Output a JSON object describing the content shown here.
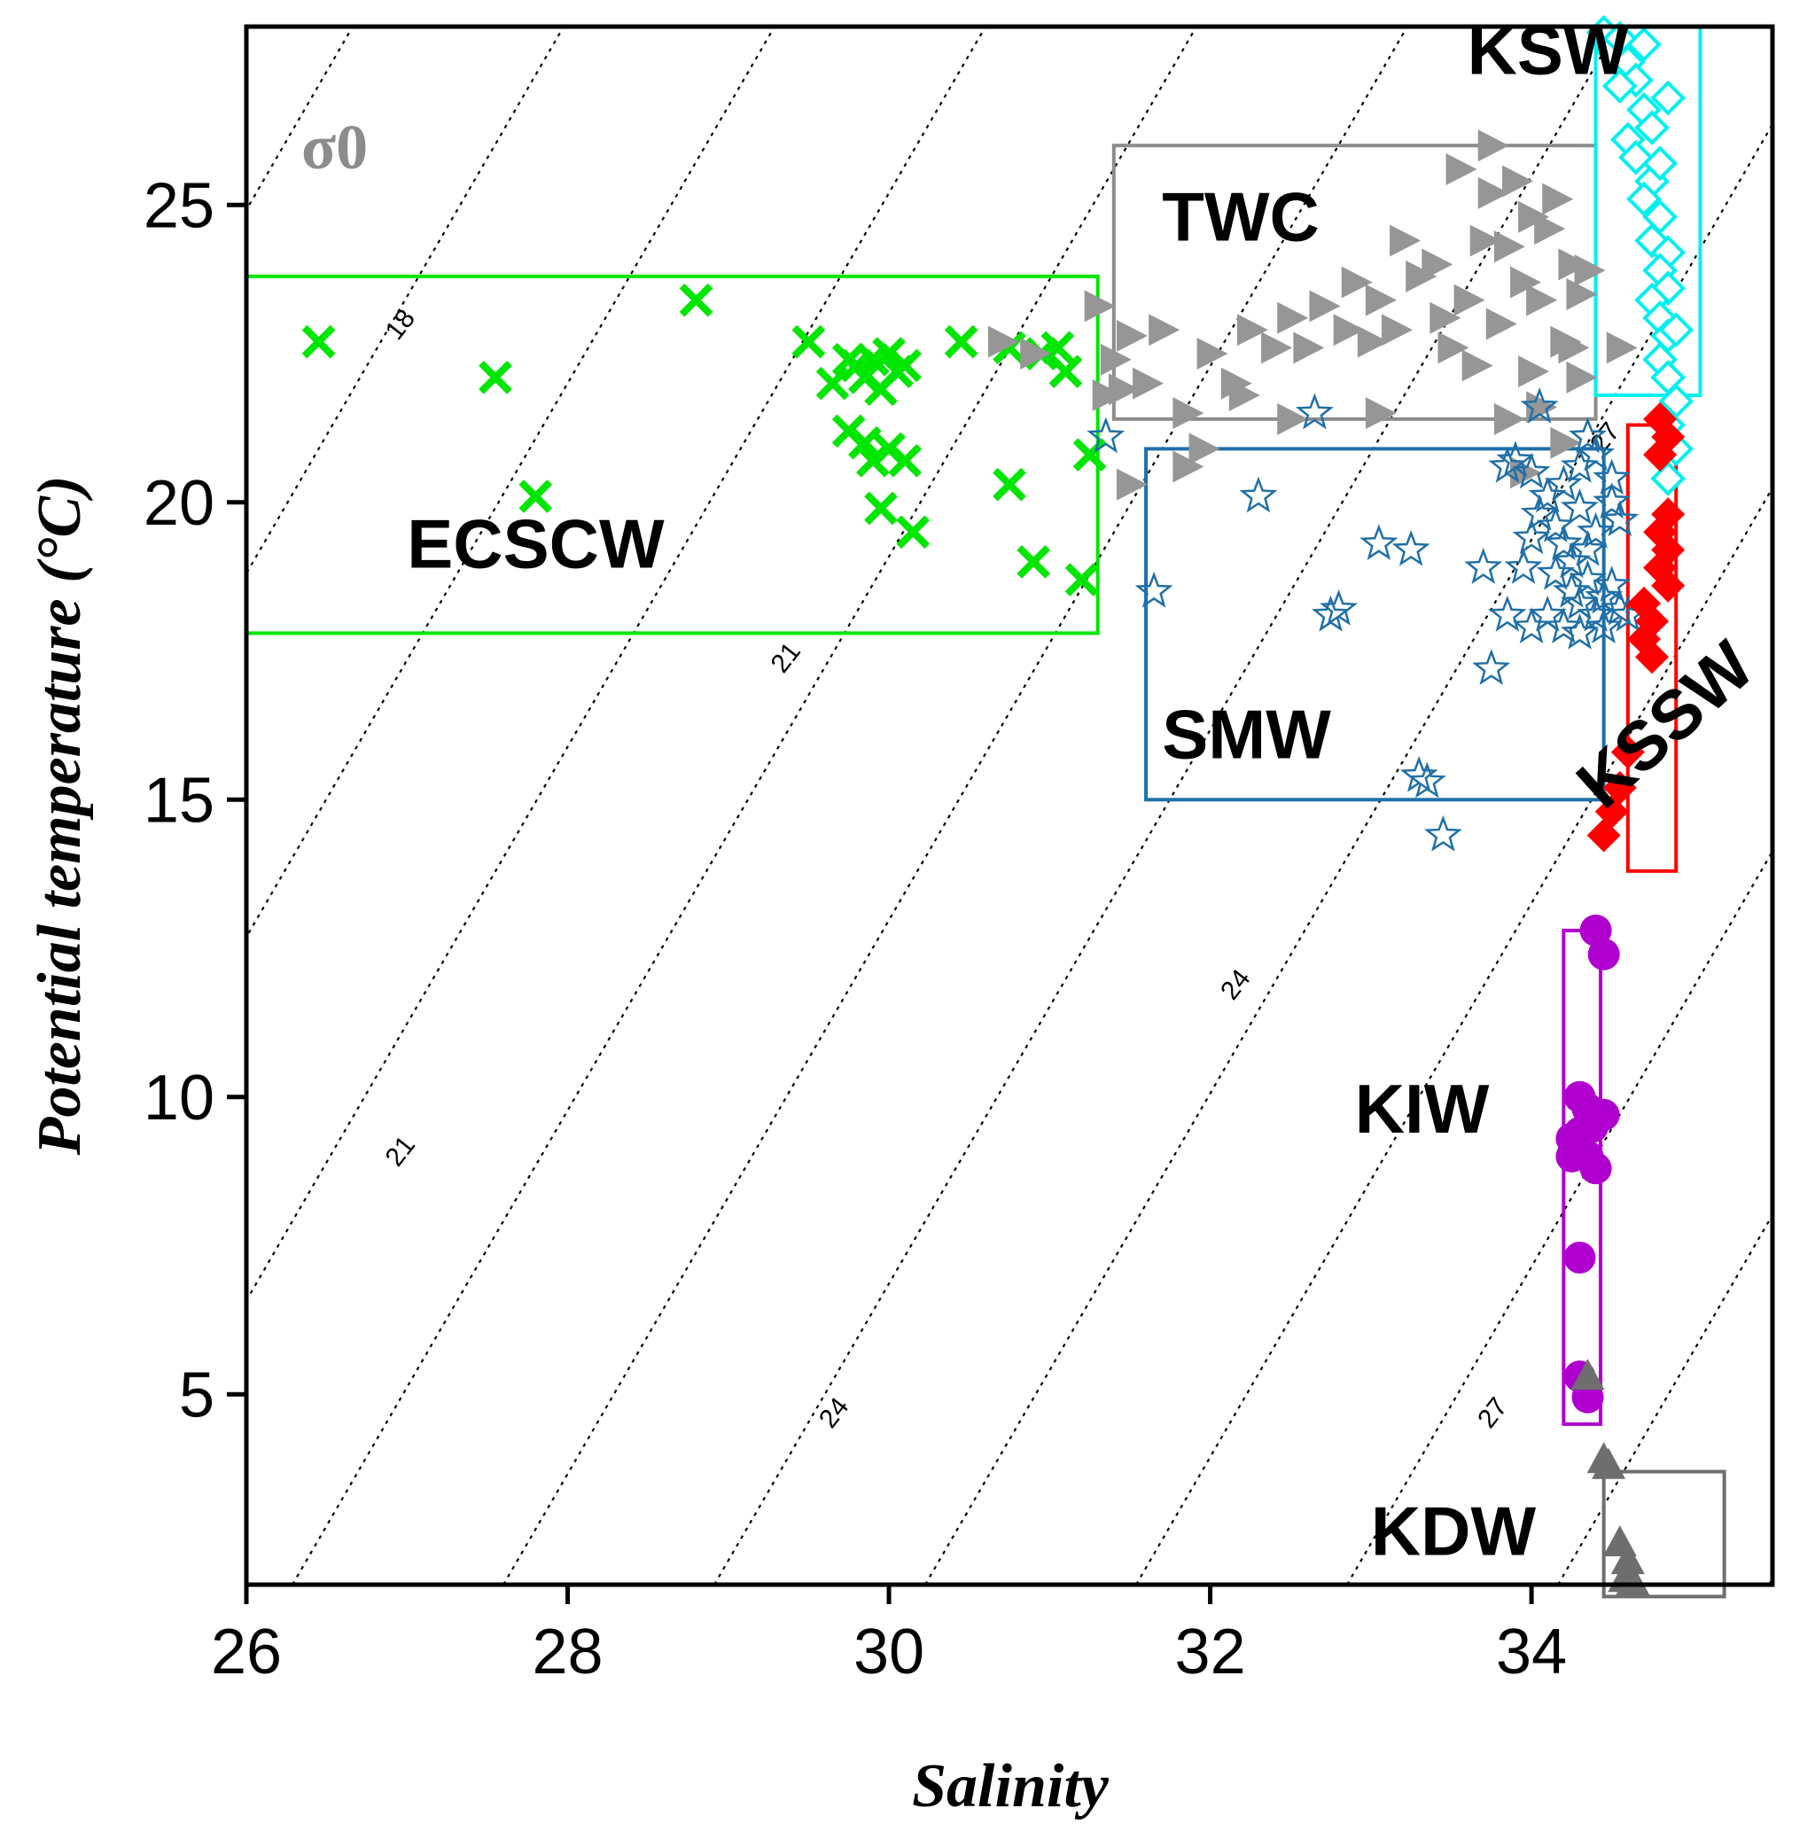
{
  "chart_data": {
    "type": "scatter",
    "title": "",
    "xlabel": "Salinity",
    "ylabel": "Potential temperature (°C)",
    "xlim": [
      26,
      35.5
    ],
    "ylim": [
      1.8,
      28
    ],
    "xticks": [
      26,
      28,
      30,
      32,
      34
    ],
    "yticks": [
      5,
      10,
      15,
      20,
      25
    ],
    "sigma_label": "σ0",
    "contour_levels": [
      18,
      21,
      24,
      27
    ],
    "contour_labels": [
      {
        "text": "18",
        "s": 27.0,
        "t": 22.9
      },
      {
        "text": "21",
        "s": 29.4,
        "t": 17.3
      },
      {
        "text": "24",
        "s": 32.2,
        "t": 11.8
      },
      {
        "text": "21",
        "s": 27.0,
        "t": 9.0
      },
      {
        "text": "24",
        "s": 29.7,
        "t": 4.6
      },
      {
        "text": "27",
        "s": 33.8,
        "t": 4.6
      },
      {
        "text": "27",
        "s": 34.5,
        "t": 21.0
      }
    ],
    "regions": [
      {
        "name": "ECSCW",
        "color": "#00e600",
        "box": {
          "smin": 26.0,
          "smax": 31.3,
          "tmin": 17.8,
          "tmax": 23.8
        },
        "label_at": {
          "s": 27.0,
          "t": 18.9
        }
      },
      {
        "name": "TWC",
        "color": "#8c8c8c",
        "box": {
          "smin": 31.4,
          "smax": 34.4,
          "tmin": 21.4,
          "tmax": 26.0
        },
        "label_at": {
          "s": 31.7,
          "t": 24.4
        }
      },
      {
        "name": "SMW",
        "color": "#1f6fa8",
        "box": {
          "smin": 31.6,
          "smax": 34.45,
          "tmin": 15.0,
          "tmax": 20.9
        },
        "label_at": {
          "s": 31.7,
          "t": 15.7
        }
      },
      {
        "name": "KSW",
        "color": "#00f0f0",
        "box": {
          "smin": 34.4,
          "smax": 35.05,
          "tmin": 21.8,
          "tmax": 28.0
        },
        "label_at": {
          "s": 33.6,
          "t": 27.2
        }
      },
      {
        "name": "KSSW",
        "color": "#ff0000",
        "box": {
          "smin": 34.6,
          "smax": 34.9,
          "tmin": 13.8,
          "tmax": 21.3
        },
        "label_at": {
          "s": 34.45,
          "t": 14.8
        }
      },
      {
        "name": "KIW",
        "color": "#b000d0",
        "box": {
          "smin": 34.2,
          "smax": 34.43,
          "tmin": 4.5,
          "tmax": 12.8
        },
        "label_at": {
          "s": 32.9,
          "t": 9.4
        }
      },
      {
        "name": "KDW",
        "color": "#6e6e6e",
        "box": {
          "smin": 34.45,
          "smax": 35.2,
          "tmin": 1.6,
          "tmax": 3.7
        },
        "label_at": {
          "s": 33.0,
          "t": 2.3
        }
      }
    ],
    "series": [
      {
        "name": "ECSCW",
        "marker": "x",
        "color": "#00e600",
        "points": [
          [
            26.45,
            22.7
          ],
          [
            27.55,
            22.1
          ],
          [
            27.8,
            20.1
          ],
          [
            28.8,
            23.4
          ],
          [
            29.5,
            22.7
          ],
          [
            29.65,
            22.0
          ],
          [
            29.75,
            22.4
          ],
          [
            29.8,
            22.3
          ],
          [
            29.9,
            22.4
          ],
          [
            30.0,
            22.5
          ],
          [
            29.85,
            22.1
          ],
          [
            29.95,
            21.9
          ],
          [
            30.05,
            22.2
          ],
          [
            30.1,
            22.3
          ],
          [
            29.75,
            21.2
          ],
          [
            29.85,
            21.0
          ],
          [
            29.9,
            20.7
          ],
          [
            30.0,
            20.9
          ],
          [
            30.1,
            20.7
          ],
          [
            29.95,
            19.9
          ],
          [
            30.15,
            19.5
          ],
          [
            30.45,
            22.7
          ],
          [
            30.75,
            22.6
          ],
          [
            30.95,
            22.5
          ],
          [
            31.05,
            22.6
          ],
          [
            31.1,
            22.2
          ],
          [
            30.75,
            20.3
          ],
          [
            30.9,
            19.0
          ],
          [
            31.2,
            18.7
          ],
          [
            31.25,
            20.8
          ]
        ]
      },
      {
        "name": "TWC",
        "marker": "triangle-right",
        "color": "#969696",
        "points": [
          [
            30.7,
            22.7
          ],
          [
            30.9,
            22.5
          ],
          [
            31.3,
            23.3
          ],
          [
            31.4,
            22.4
          ],
          [
            31.5,
            22.8
          ],
          [
            31.35,
            21.8
          ],
          [
            31.45,
            21.9
          ],
          [
            31.6,
            22.0
          ],
          [
            31.7,
            22.9
          ],
          [
            31.85,
            21.5
          ],
          [
            32.0,
            22.5
          ],
          [
            32.15,
            22.0
          ],
          [
            32.25,
            22.9
          ],
          [
            32.4,
            22.6
          ],
          [
            32.5,
            23.1
          ],
          [
            32.6,
            22.6
          ],
          [
            32.7,
            23.3
          ],
          [
            32.85,
            22.9
          ],
          [
            32.9,
            23.7
          ],
          [
            33.0,
            22.7
          ],
          [
            33.05,
            23.4
          ],
          [
            33.15,
            22.9
          ],
          [
            33.2,
            24.4
          ],
          [
            33.3,
            23.8
          ],
          [
            33.4,
            24.0
          ],
          [
            33.45,
            23.1
          ],
          [
            33.5,
            22.6
          ],
          [
            33.6,
            23.4
          ],
          [
            33.7,
            24.4
          ],
          [
            33.75,
            25.2
          ],
          [
            33.8,
            23.0
          ],
          [
            33.85,
            24.3
          ],
          [
            33.9,
            25.4
          ],
          [
            33.95,
            23.7
          ],
          [
            34.0,
            24.8
          ],
          [
            34.05,
            23.4
          ],
          [
            34.1,
            24.6
          ],
          [
            34.15,
            25.1
          ],
          [
            34.2,
            22.7
          ],
          [
            34.25,
            24.0
          ],
          [
            34.3,
            23.5
          ],
          [
            34.3,
            22.1
          ],
          [
            34.35,
            23.9
          ],
          [
            33.75,
            26.0
          ],
          [
            33.55,
            25.6
          ],
          [
            33.05,
            21.5
          ],
          [
            32.5,
            21.4
          ],
          [
            34.05,
            21.6
          ],
          [
            34.2,
            21.0
          ],
          [
            33.95,
            20.5
          ],
          [
            31.85,
            20.6
          ],
          [
            31.5,
            20.3
          ],
          [
            31.95,
            20.9
          ],
          [
            34.55,
            22.6
          ],
          [
            34.0,
            22.2
          ],
          [
            33.65,
            22.3
          ],
          [
            34.25,
            22.6
          ],
          [
            33.85,
            21.4
          ],
          [
            32.2,
            21.8
          ]
        ]
      },
      {
        "name": "SMW",
        "marker": "star",
        "color": "#1f6fa8",
        "points": [
          [
            31.35,
            21.1
          ],
          [
            31.65,
            18.5
          ],
          [
            32.3,
            20.1
          ],
          [
            32.65,
            21.5
          ],
          [
            32.75,
            18.1
          ],
          [
            32.8,
            18.2
          ],
          [
            33.05,
            19.3
          ],
          [
            33.25,
            19.2
          ],
          [
            33.3,
            15.4
          ],
          [
            33.35,
            15.3
          ],
          [
            33.45,
            14.4
          ],
          [
            33.7,
            18.9
          ],
          [
            33.75,
            17.2
          ],
          [
            33.85,
            20.6
          ],
          [
            33.9,
            20.7
          ],
          [
            34.0,
            20.5
          ],
          [
            33.85,
            18.1
          ],
          [
            33.95,
            18.9
          ],
          [
            34.0,
            19.4
          ],
          [
            34.05,
            19.8
          ],
          [
            34.1,
            20.1
          ],
          [
            34.15,
            19.6
          ],
          [
            34.15,
            18.8
          ],
          [
            34.2,
            19.3
          ],
          [
            34.2,
            20.3
          ],
          [
            34.25,
            18.5
          ],
          [
            34.25,
            19.0
          ],
          [
            34.3,
            19.9
          ],
          [
            34.3,
            18.3
          ],
          [
            34.35,
            18.7
          ],
          [
            34.35,
            19.2
          ],
          [
            34.4,
            18.1
          ],
          [
            34.4,
            19.5
          ],
          [
            34.45,
            18.4
          ],
          [
            34.45,
            17.9
          ],
          [
            34.5,
            18.6
          ],
          [
            34.5,
            20.0
          ],
          [
            34.55,
            18.2
          ],
          [
            34.55,
            19.7
          ],
          [
            34.1,
            18.1
          ],
          [
            34.0,
            17.9
          ],
          [
            34.2,
            17.9
          ],
          [
            34.3,
            17.8
          ],
          [
            34.05,
            21.6
          ],
          [
            34.3,
            20.6
          ],
          [
            34.4,
            20.8
          ],
          [
            34.35,
            21.1
          ],
          [
            34.5,
            20.4
          ],
          [
            34.6,
            18.1
          ]
        ]
      },
      {
        "name": "KSW",
        "marker": "diamond-open",
        "color": "#00f0f0",
        "points": [
          [
            34.45,
            27.9
          ],
          [
            34.5,
            27.6
          ],
          [
            34.55,
            27.8
          ],
          [
            34.6,
            27.4
          ],
          [
            34.65,
            27.1
          ],
          [
            34.55,
            27.0
          ],
          [
            34.7,
            26.6
          ],
          [
            34.75,
            26.3
          ],
          [
            34.6,
            26.1
          ],
          [
            34.65,
            25.8
          ],
          [
            34.75,
            25.4
          ],
          [
            34.8,
            25.7
          ],
          [
            34.7,
            25.1
          ],
          [
            34.8,
            24.8
          ],
          [
            34.75,
            24.4
          ],
          [
            34.85,
            24.2
          ],
          [
            34.8,
            23.9
          ],
          [
            34.85,
            23.6
          ],
          [
            34.75,
            23.4
          ],
          [
            34.8,
            23.1
          ],
          [
            34.85,
            22.8
          ],
          [
            34.8,
            22.4
          ],
          [
            34.9,
            22.9
          ],
          [
            34.85,
            22.1
          ],
          [
            34.9,
            21.7
          ],
          [
            34.85,
            21.3
          ],
          [
            34.9,
            20.9
          ],
          [
            34.85,
            20.4
          ],
          [
            34.7,
            27.7
          ],
          [
            34.85,
            26.8
          ]
        ]
      },
      {
        "name": "KSSW",
        "marker": "diamond",
        "color": "#ff0000",
        "points": [
          [
            34.8,
            21.4
          ],
          [
            34.85,
            21.1
          ],
          [
            34.8,
            20.8
          ],
          [
            34.85,
            19.8
          ],
          [
            34.8,
            19.5
          ],
          [
            34.85,
            19.2
          ],
          [
            34.8,
            18.9
          ],
          [
            34.85,
            18.6
          ],
          [
            34.7,
            18.3
          ],
          [
            34.75,
            18.0
          ],
          [
            34.7,
            17.7
          ],
          [
            34.75,
            17.4
          ],
          [
            34.6,
            15.8
          ],
          [
            34.55,
            15.2
          ],
          [
            34.5,
            14.8
          ],
          [
            34.45,
            14.4
          ]
        ]
      },
      {
        "name": "KIW",
        "marker": "circle",
        "color": "#b000d0",
        "points": [
          [
            34.4,
            12.8
          ],
          [
            34.45,
            12.4
          ],
          [
            34.3,
            10.0
          ],
          [
            34.35,
            9.8
          ],
          [
            34.45,
            9.7
          ],
          [
            34.3,
            9.4
          ],
          [
            34.38,
            9.5
          ],
          [
            34.25,
            9.3
          ],
          [
            34.35,
            9.0
          ],
          [
            34.25,
            9.0
          ],
          [
            34.4,
            8.8
          ],
          [
            34.3,
            7.3
          ],
          [
            34.3,
            5.3
          ],
          [
            34.35,
            4.95
          ]
        ]
      },
      {
        "name": "KDW",
        "marker": "triangle-up",
        "color": "#6e6e6e",
        "points": [
          [
            34.35,
            5.3
          ],
          [
            34.45,
            3.9
          ],
          [
            34.48,
            3.8
          ],
          [
            34.55,
            2.5
          ],
          [
            34.6,
            2.2
          ],
          [
            34.58,
            1.9
          ],
          [
            34.63,
            1.85
          ]
        ]
      }
    ]
  }
}
